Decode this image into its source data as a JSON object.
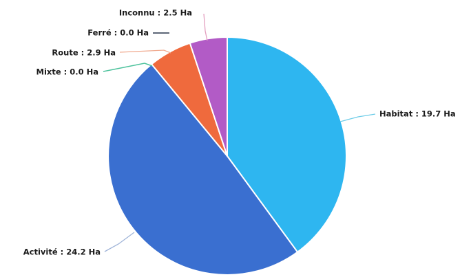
{
  "chart_data": {
    "type": "pie",
    "title": "",
    "unit": "Ha",
    "slices": [
      {
        "name": "Habitat",
        "value": 19.7,
        "label": "Habitat : 19.7 Ha",
        "color": "#2eb6f0",
        "connector_color": "#6fcde8"
      },
      {
        "name": "Activité",
        "value": 24.2,
        "label": "Activité : 24.2 Ha",
        "color": "#3a6fd0",
        "connector_color": "#9fb4d8"
      },
      {
        "name": "Mixte",
        "value": 0.0,
        "label": "Mixte : 0.0 Ha",
        "color": "#3bbf93",
        "connector_color": "#4cc29c"
      },
      {
        "name": "Route",
        "value": 2.9,
        "label": "Route : 2.9 Ha",
        "color": "#ef6a3d",
        "connector_color": "#f0a98e"
      },
      {
        "name": "Ferré",
        "value": 0.0,
        "label": "Ferré : 0.0 Ha",
        "color": "#26334a",
        "connector_color": "#26334a"
      },
      {
        "name": "Inconnu",
        "value": 2.5,
        "label": "Inconnu : 2.5 Ha",
        "color": "#b25bc6",
        "connector_color": "#e39fbf"
      }
    ],
    "legend": "none"
  }
}
